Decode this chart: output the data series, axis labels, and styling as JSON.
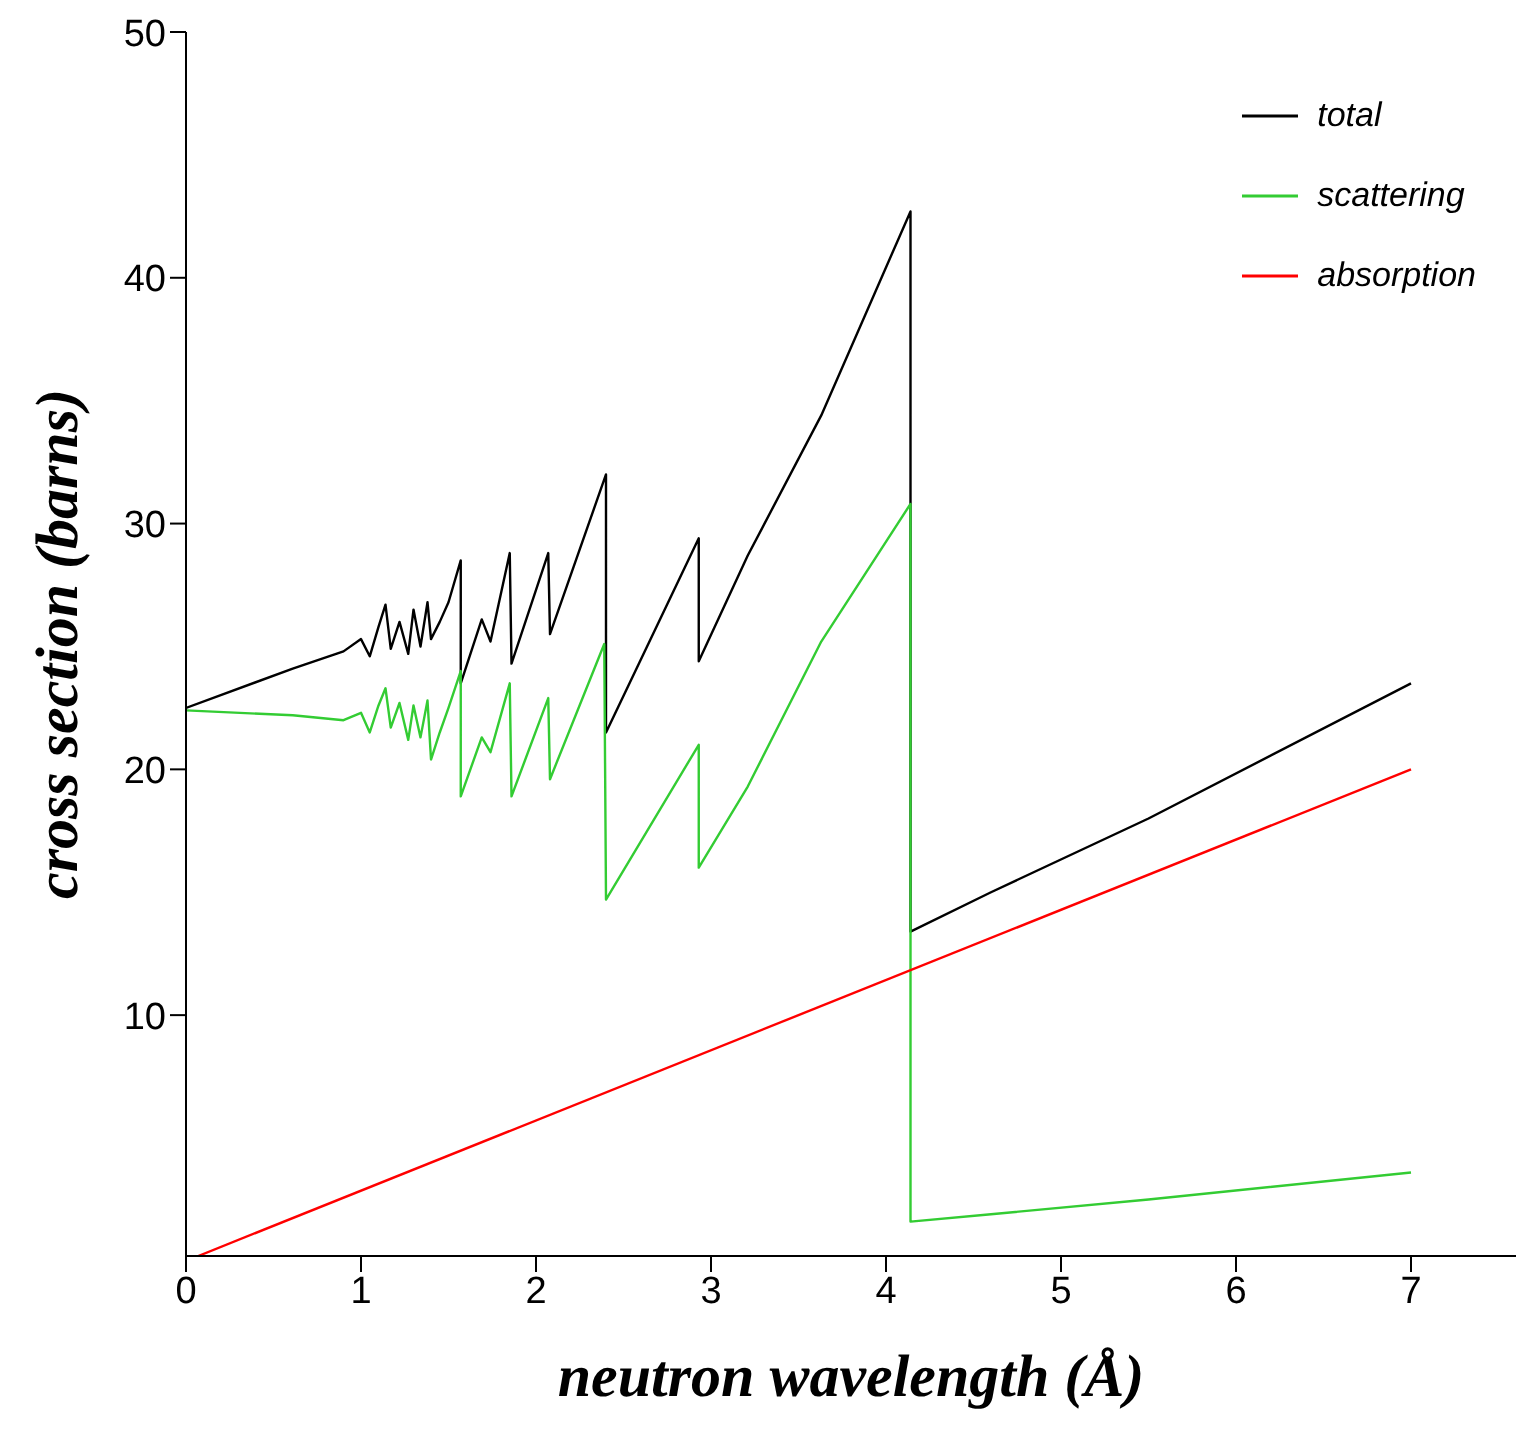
{
  "chart_data": {
    "type": "line",
    "xlabel": "neutron wavelength  (Å)",
    "ylabel": "cross section  (barns)",
    "xlim": [
      0,
      7.6
    ],
    "xticks": [
      0,
      1,
      2,
      3,
      4,
      5,
      6,
      7
    ],
    "ylim": [
      0.2,
      50
    ],
    "yticks": [
      10,
      20,
      30,
      40,
      50
    ],
    "legend": "top right",
    "marker": "none",
    "line_style": "solid",
    "series": [
      {
        "name": "total",
        "color": "#000000",
        "x": [
          0,
          0.61,
          0.9,
          1.0,
          1.05,
          1.1,
          1.14,
          1.17,
          1.22,
          1.27,
          1.3,
          1.34,
          1.38,
          1.4,
          1.45,
          1.5,
          1.57,
          1.57,
          1.69,
          1.74,
          1.85,
          1.86,
          2.07,
          2.08,
          2.4,
          2.4,
          2.93,
          2.93,
          3.21,
          3.63,
          4.14,
          4.14,
          4.6,
          5.5,
          7.0
        ],
        "values": [
          22.5,
          24.1,
          24.8,
          25.3,
          24.6,
          25.8,
          26.7,
          24.9,
          26.0,
          24.7,
          26.5,
          25.0,
          26.8,
          25.3,
          26.0,
          26.8,
          28.5,
          23.5,
          26.1,
          25.2,
          28.8,
          24.3,
          28.8,
          25.5,
          32.0,
          21.5,
          29.4,
          24.4,
          28.7,
          34.4,
          42.7,
          13.4,
          15.0,
          18.0,
          23.5
        ]
      },
      {
        "name": "scattering",
        "color": "#33cc33",
        "x": [
          0,
          0.61,
          0.9,
          1.0,
          1.05,
          1.1,
          1.14,
          1.17,
          1.22,
          1.27,
          1.3,
          1.34,
          1.38,
          1.4,
          1.45,
          1.5,
          1.57,
          1.57,
          1.69,
          1.74,
          1.85,
          1.86,
          2.07,
          2.08,
          2.39,
          2.4,
          2.93,
          2.93,
          3.21,
          3.63,
          4.14,
          4.14,
          4.6,
          5.5,
          7.0
        ],
        "values": [
          22.4,
          22.2,
          22.0,
          22.3,
          21.5,
          22.6,
          23.3,
          21.7,
          22.7,
          21.2,
          22.6,
          21.3,
          22.8,
          20.4,
          21.5,
          22.5,
          24.0,
          18.9,
          21.3,
          20.7,
          23.5,
          18.9,
          22.9,
          19.6,
          25.1,
          14.7,
          21.0,
          16.0,
          19.3,
          25.2,
          30.8,
          1.6,
          1.9,
          2.5,
          3.6
        ]
      },
      {
        "name": "absorption",
        "color": "#ff0000",
        "x": [
          0.07,
          7.0
        ],
        "values": [
          0.2,
          20.0
        ]
      }
    ]
  }
}
